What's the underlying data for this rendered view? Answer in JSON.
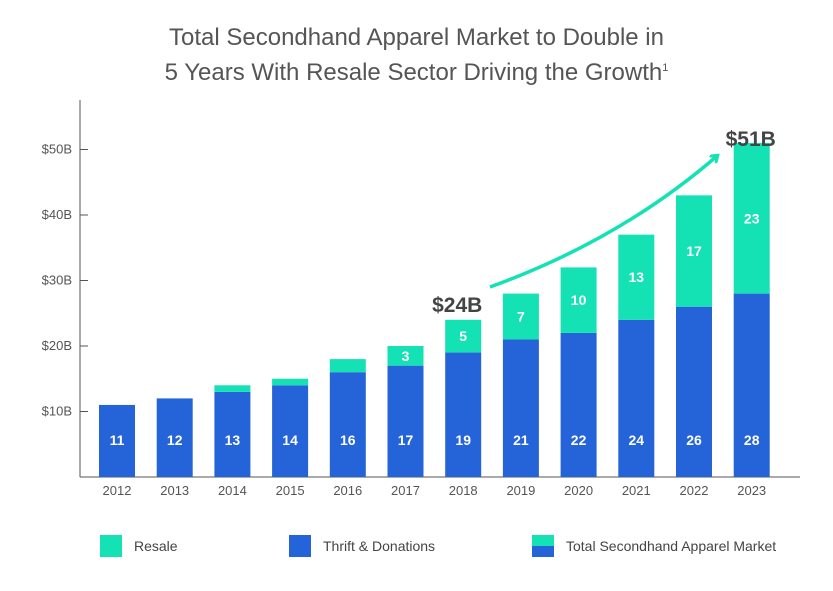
{
  "title": {
    "line1": "Total Secondhand Apparel Market to Double in",
    "line2": "5 Years With Resale Sector Driving the Growth",
    "footnote_mark": "1"
  },
  "chart_data": {
    "type": "bar",
    "stacked": true,
    "categories": [
      "2012",
      "2013",
      "2014",
      "2015",
      "2016",
      "2017",
      "2018",
      "2019",
      "2020",
      "2021",
      "2022",
      "2023"
    ],
    "series": [
      {
        "name": "Thrift & Donations",
        "color": "#2563d9",
        "values": [
          11,
          12,
          13,
          14,
          16,
          17,
          19,
          21,
          22,
          24,
          26,
          28
        ],
        "labels": [
          "11",
          "12",
          "13",
          "14",
          "16",
          "17",
          "19",
          "21",
          "22",
          "24",
          "26",
          "28"
        ]
      },
      {
        "name": "Resale",
        "color": "#14e2b4",
        "values": [
          0,
          0,
          1,
          1,
          2,
          3,
          5,
          7,
          10,
          13,
          17,
          23
        ],
        "labels": [
          "",
          "",
          "",
          "",
          "",
          "3",
          "5",
          "7",
          "10",
          "13",
          "17",
          "23"
        ]
      }
    ],
    "y_ticks": [
      {
        "value": 10,
        "label": "$10B"
      },
      {
        "value": 20,
        "label": "$20B"
      },
      {
        "value": 30,
        "label": "$30B"
      },
      {
        "value": 40,
        "label": "$40B"
      },
      {
        "value": 50,
        "label": "$50B"
      }
    ],
    "ylim": [
      0,
      55
    ],
    "annotations": [
      {
        "text": "$24B",
        "category": "2018"
      },
      {
        "text": "$51B",
        "category": "2023"
      }
    ],
    "arrow_color": "#14e2b4",
    "grid": false,
    "legend_position": "bottom"
  },
  "legend": [
    {
      "label": "Resale",
      "swatch": "resale"
    },
    {
      "label": "Thrift & Donations",
      "swatch": "thrift"
    },
    {
      "label": "Total Secondhand Apparel Market",
      "swatch": "total"
    }
  ]
}
